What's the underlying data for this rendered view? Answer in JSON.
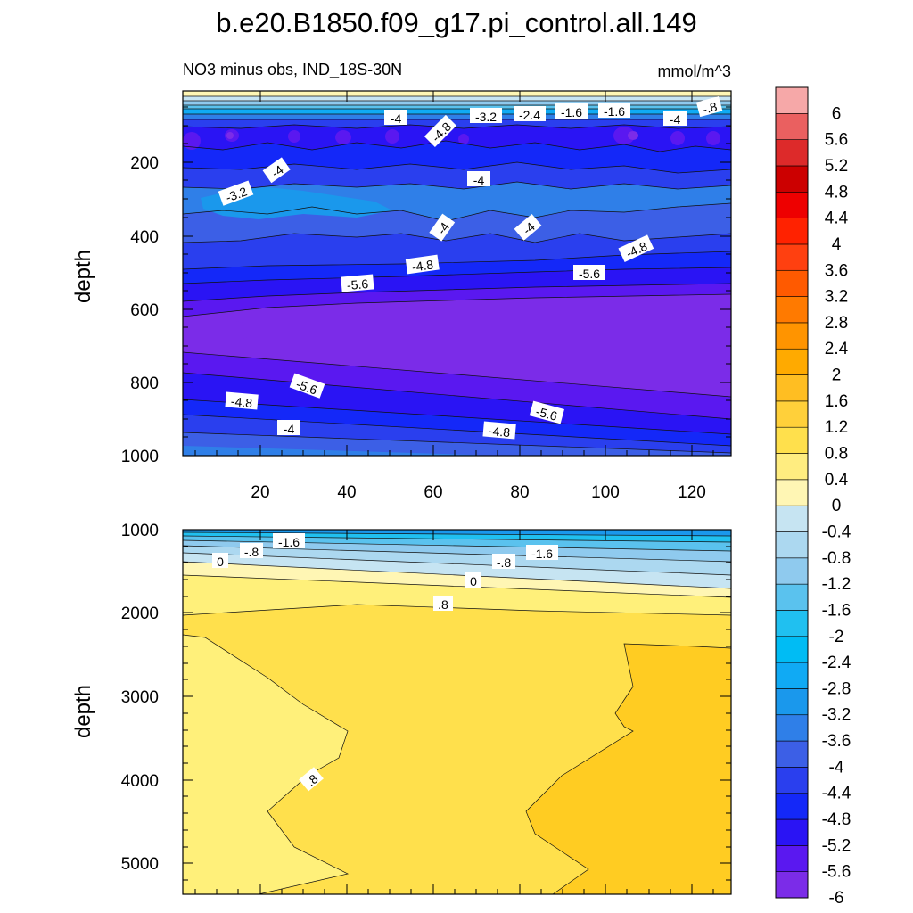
{
  "title": "b.e20.B1850.f09_g17.pi_control.all.149",
  "colors": {
    "levels": [
      "#7b2ce8",
      "#5a18f0",
      "#2a14f4",
      "#1428f8",
      "#2a3fee",
      "#3c5fe6",
      "#2f7fe8",
      "#1a98ec",
      "#10aaf4",
      "#00bcf4",
      "#20c0f0",
      "#5ac2ee",
      "#8fcaee",
      "#acd8f0",
      "#c6e4f2",
      "#fff6b4",
      "#ffed80",
      "#ffe04c",
      "#ffd03a",
      "#ffbe22",
      "#ffaa00",
      "#ff9400",
      "#ff7a00",
      "#ff5a00",
      "#ff4010",
      "#ff2200",
      "#ee0000",
      "#cc0000",
      "#dd2a2a",
      "#ea6060",
      "#f6a8a8"
    ]
  },
  "colorbar": {
    "labels": [
      "6",
      "5.6",
      "5.2",
      "4.8",
      "4.4",
      "4",
      "3.6",
      "3.2",
      "2.8",
      "2.4",
      "2",
      "1.6",
      "1.2",
      "0.8",
      "0.4",
      "0",
      "-0.4",
      "-0.8",
      "-1.2",
      "-1.6",
      "-2",
      "-2.4",
      "-2.8",
      "-3.2",
      "-3.6",
      "-4",
      "-4.4",
      "-4.8",
      "-5.2",
      "-5.6",
      "-6"
    ]
  },
  "chart_data": [
    {
      "type": "heatmap",
      "subtitle_left": "NO3 minus obs, IND_18S-30N",
      "subtitle_right": "mmol/m^3",
      "ylabel": "depth",
      "xlim": [
        1,
        130
      ],
      "ylim": [
        1000,
        0
      ],
      "x_ticks": [
        "20",
        "40",
        "60",
        "80",
        "100",
        "120"
      ],
      "y_ticks": [
        "200",
        "400",
        "600",
        "800",
        "1000"
      ],
      "bands": [
        {
          "depth_top": 0,
          "depth_bottom": 30,
          "value": 0.4
        },
        {
          "depth_top": 30,
          "depth_bottom": 45,
          "value": -0.8
        },
        {
          "depth_top": 45,
          "depth_bottom": 60,
          "value": -1.6
        },
        {
          "depth_top": 60,
          "depth_bottom": 80,
          "value": -2.8
        },
        {
          "depth_top": 80,
          "depth_bottom": 110,
          "value": -4.4
        },
        {
          "depth_top": 110,
          "depth_bottom": 200,
          "value": -5.2
        },
        {
          "depth_top": 200,
          "depth_bottom": 240,
          "value": -4.4
        },
        {
          "depth_top": 240,
          "depth_bottom": 330,
          "value": -3.6
        },
        {
          "depth_top": 330,
          "depth_bottom": 430,
          "value": -4.0
        },
        {
          "depth_top": 430,
          "depth_bottom": 500,
          "value": -4.8
        },
        {
          "depth_top": 500,
          "depth_bottom": 600,
          "value": -5.6
        },
        {
          "depth_top": 600,
          "depth_bottom": 780,
          "value": -6.0
        },
        {
          "depth_top": 780,
          "depth_bottom": 900,
          "value": -5.6
        },
        {
          "depth_top": 900,
          "depth_bottom": 1000,
          "value": -4.4
        }
      ],
      "contour_labels": [
        "-4",
        "-4.8",
        "-3.2",
        "-2.4",
        "-1.6",
        "-1.6",
        "-4",
        "-.8",
        "-4",
        "-3.2",
        "-4",
        "-4",
        "-4",
        "-4.8",
        "-4.8",
        "-5.6",
        "-5.6",
        "-5.6",
        "-4.8",
        "-5.6",
        "-4",
        "-4.8"
      ]
    },
    {
      "type": "heatmap",
      "ylabel": "depth",
      "xlim": [
        1,
        130
      ],
      "ylim": [
        5350,
        1000
      ],
      "y_ticks": [
        "1000",
        "2000",
        "3000",
        "4000",
        "5000"
      ],
      "bands": [
        {
          "depth_top": 1000,
          "depth_bottom": 1100,
          "value": -2.0
        },
        {
          "depth_top": 1100,
          "depth_bottom": 1300,
          "value": -1.2
        },
        {
          "depth_top": 1300,
          "depth_bottom": 1500,
          "value": -0.4
        },
        {
          "depth_top": 1500,
          "depth_bottom": 1700,
          "value": 0.2
        },
        {
          "depth_top": 1700,
          "depth_bottom": 2200,
          "value": 0.8
        },
        {
          "depth_top": 2200,
          "depth_bottom": 5350,
          "value": 1.0
        }
      ],
      "contour_labels": [
        "-1.6",
        "-.8",
        "0",
        "-.8",
        "-1.6",
        "0",
        ".8",
        ".8"
      ]
    }
  ]
}
